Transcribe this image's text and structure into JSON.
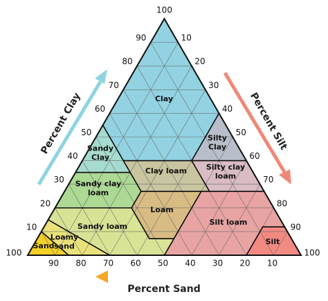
{
  "axes": {
    "clay": {
      "title": "Percent Clay",
      "ticks": [
        10,
        20,
        30,
        40,
        50,
        60,
        70,
        80,
        90,
        100
      ]
    },
    "silt": {
      "title": "Percent Silt",
      "ticks": [
        10,
        20,
        30,
        40,
        50,
        60,
        70,
        80,
        90,
        100
      ]
    },
    "sand": {
      "title": "Percent Sand",
      "ticks": [
        100,
        90,
        80,
        70,
        60,
        50,
        40,
        30,
        20,
        10
      ]
    }
  },
  "regions": [
    {
      "label": "Clay"
    },
    {
      "label": "Silty\nClay"
    },
    {
      "label": "Sandy\nClay"
    },
    {
      "label": "Clay loam"
    },
    {
      "label": "Silty clay\nloam"
    },
    {
      "label": "Sandy clay\nloam"
    },
    {
      "label": "Loam"
    },
    {
      "label": "Silt loam"
    },
    {
      "label": "Silt"
    },
    {
      "label": "Sandy loam"
    },
    {
      "label": "Loamy\nsand"
    },
    {
      "label": "Sand"
    }
  ]
}
